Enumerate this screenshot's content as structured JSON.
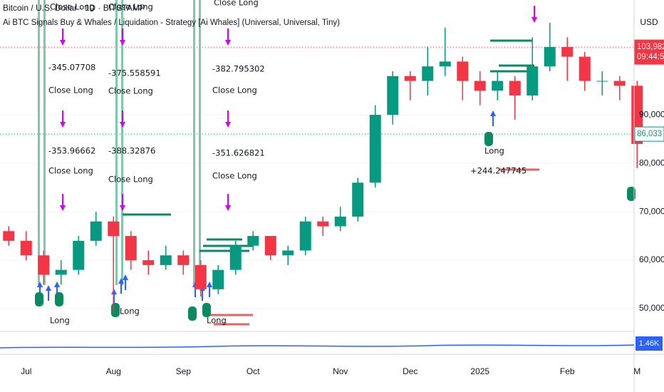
{
  "chart_data": {
    "type": "candlestick",
    "title": "Bitcoin / U.S. Dollar · 1D · BITSTAMP",
    "subtitle": "Ai BTC Signals Buy & Whales / Liquidation - Strategy [Ai Whales] (Universal, Universal, Tiny)",
    "currency": "USD",
    "categories": [
      null,
      "Jul",
      null,
      null,
      null,
      null,
      "Aug",
      null,
      null,
      null,
      "Sep",
      null,
      null,
      null,
      "Oct",
      null,
      null,
      null,
      null,
      "Nov",
      null,
      null,
      null,
      "Dec",
      null,
      null,
      null,
      "2025",
      null,
      null,
      null,
      null,
      "Feb",
      null,
      null,
      null,
      "M"
    ],
    "open": [
      66000,
      64000,
      61000,
      57000,
      58000,
      64000,
      68000,
      65000,
      60000,
      59000,
      61000,
      59000,
      54000,
      58000,
      63000,
      65000,
      61000,
      62000,
      68000,
      67000,
      69000,
      76000,
      90000,
      98000,
      97000,
      100000,
      101000,
      97000,
      95000,
      97000,
      94000,
      100000,
      104000,
      102000,
      97000,
      97000,
      96000
    ],
    "high": [
      67000,
      66000,
      62000,
      60000,
      65000,
      70000,
      69000,
      66000,
      62000,
      63000,
      62000,
      60000,
      59000,
      64000,
      66000,
      65000,
      63000,
      69000,
      69000,
      71000,
      77000,
      92000,
      99000,
      99000,
      104000,
      108000,
      102000,
      99000,
      99000,
      98000,
      106000,
      109000,
      106000,
      103000,
      99000,
      98000,
      97000
    ],
    "low": [
      63000,
      60000,
      55000,
      55000,
      57000,
      63000,
      49000,
      58000,
      57000,
      58000,
      57000,
      52500,
      53000,
      57000,
      62000,
      60000,
      59000,
      61000,
      65000,
      66000,
      68000,
      75000,
      88000,
      93000,
      94000,
      98000,
      93000,
      92000,
      93000,
      89000,
      93000,
      99000,
      97000,
      95000,
      94000,
      93000,
      79000
    ],
    "close": [
      64000,
      61000,
      57000,
      58000,
      64000,
      68000,
      65000,
      60000,
      59000,
      61000,
      59000,
      54000,
      58000,
      63000,
      65000,
      61000,
      62000,
      68000,
      67000,
      69000,
      76000,
      90000,
      98000,
      97000,
      100000,
      101000,
      97000,
      95000,
      97000,
      94000,
      100000,
      104000,
      102000,
      97000,
      97000,
      96000,
      84000
    ],
    "up_color": "#089981",
    "down_color": "#f23645",
    "ylim": [
      45300,
      113700
    ],
    "yticks": [
      {
        "value": 50000,
        "label": "50,000"
      },
      {
        "value": 60000,
        "label": "60,000"
      },
      {
        "value": 70000,
        "label": "70,000"
      },
      {
        "value": 80000,
        "label": "80,000"
      },
      {
        "value": 90000,
        "label": "90,000"
      }
    ],
    "grid": true,
    "price_labels": [
      {
        "value": 103982,
        "label": "103,982",
        "sub": "09:44:57",
        "color": "#f23645"
      },
      {
        "value": 86033,
        "label": "86,033",
        "color": "#089981"
      }
    ],
    "volume_label": "1.46K",
    "annotations": [
      "Close Long",
      "Close Long",
      "Close Long",
      "-345.07708",
      "Close Long",
      "-375.558591",
      "Close Long",
      "-382.795302",
      "Close Long",
      "-353.96662",
      "Close Long",
      "-388.32876",
      "Close Long",
      "-351.626821",
      "Close Long",
      "Long",
      "+244.247745",
      "Long",
      "Long",
      "Long"
    ]
  }
}
